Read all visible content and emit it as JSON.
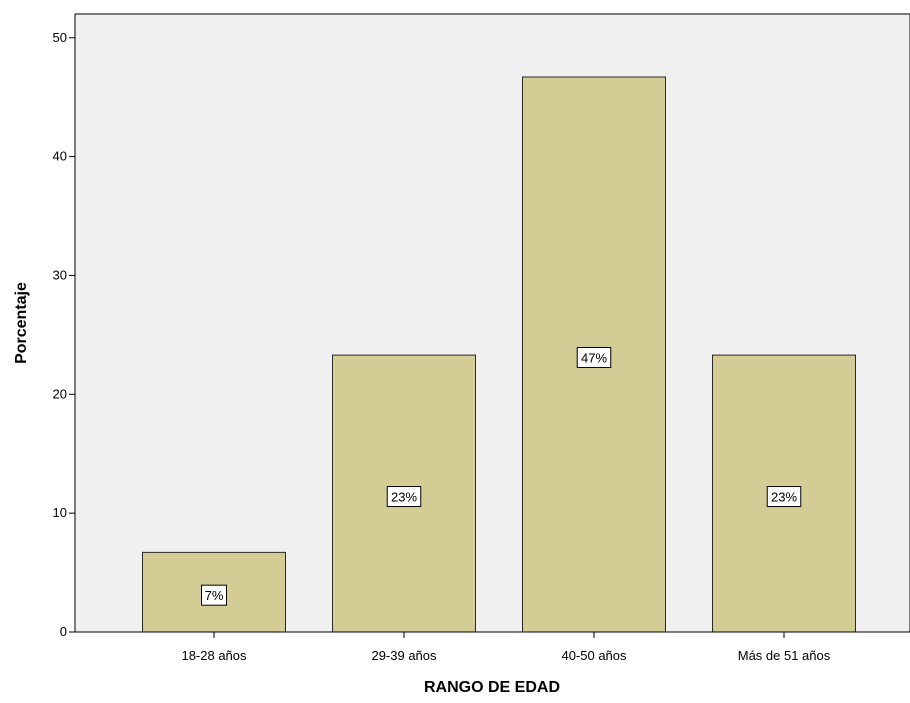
{
  "chart_data": {
    "type": "bar",
    "title": "",
    "xlabel": "RANGO DE EDAD",
    "ylabel": "Porcentaje",
    "categories": [
      "18-28 años",
      "29-39 años",
      "40-50 años",
      "Más de 51 años"
    ],
    "values": [
      6.7,
      23.3,
      46.7,
      23.3
    ],
    "data_labels": [
      "7%",
      "23%",
      "47%",
      "23%"
    ],
    "ylim": [
      0,
      52
    ],
    "yticks": [
      0,
      10,
      20,
      30,
      40,
      50
    ],
    "ytick_labels": [
      "0",
      "10",
      "20",
      "30",
      "40",
      "50"
    ],
    "grid": false,
    "colors": {
      "bar_fill": "#d3cd95",
      "bar_stroke": "#2b2b2b",
      "plot_background": "#f0f0f0",
      "axis": "#000000"
    }
  }
}
